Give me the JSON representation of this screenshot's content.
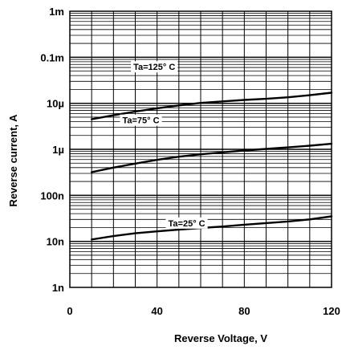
{
  "chart_data": {
    "type": "line",
    "xlabel": "Reverse Voltage, V",
    "ylabel": "Reverse current, A",
    "x_scale": "linear",
    "y_scale": "log",
    "xlim": [
      0,
      120
    ],
    "ylim": [
      1e-09,
      0.001
    ],
    "x_ticks": [
      {
        "value": 0,
        "label": "0"
      },
      {
        "value": 40,
        "label": "40"
      },
      {
        "value": 80,
        "label": "80"
      },
      {
        "value": 120,
        "label": "120"
      }
    ],
    "y_ticks": [
      {
        "value": 0.001,
        "label": "1m"
      },
      {
        "value": 0.0001,
        "label": "0.1m"
      },
      {
        "value": 1e-05,
        "label": "10µ"
      },
      {
        "value": 1e-06,
        "label": "1µ"
      },
      {
        "value": 1e-07,
        "label": "100n"
      },
      {
        "value": 1e-08,
        "label": "10n"
      },
      {
        "value": 1e-09,
        "label": "1n"
      }
    ],
    "grid": true,
    "series": [
      {
        "name": "Ta=125° C",
        "x": [
          10,
          20,
          30,
          40,
          50,
          60,
          70,
          80,
          90,
          100,
          110,
          120
        ],
        "y": [
          4.5e-06,
          5.5e-06,
          6.6e-06,
          7.8e-06,
          9e-06,
          1.02e-05,
          1.1e-05,
          1.18e-05,
          1.25e-05,
          1.35e-05,
          1.5e-05,
          1.7e-05
        ]
      },
      {
        "name": "Ta=75° C",
        "x": [
          10,
          20,
          30,
          40,
          50,
          60,
          70,
          80,
          90,
          100,
          110,
          120
        ],
        "y": [
          3.2e-07,
          4e-07,
          4.9e-07,
          5.9e-07,
          6.9e-07,
          7.8e-07,
          8.6e-07,
          9.4e-07,
          1.02e-06,
          1.1e-06,
          1.2e-06,
          1.32e-06
        ]
      },
      {
        "name": "Ta=25° C",
        "x": [
          10,
          20,
          30,
          40,
          50,
          60,
          70,
          80,
          90,
          100,
          110,
          120
        ],
        "y": [
          1.1e-08,
          1.3e-08,
          1.5e-08,
          1.65e-08,
          1.8e-08,
          1.95e-08,
          2.1e-08,
          2.3e-08,
          2.5e-08,
          2.7e-08,
          3e-08,
          3.5e-08
        ]
      }
    ]
  }
}
